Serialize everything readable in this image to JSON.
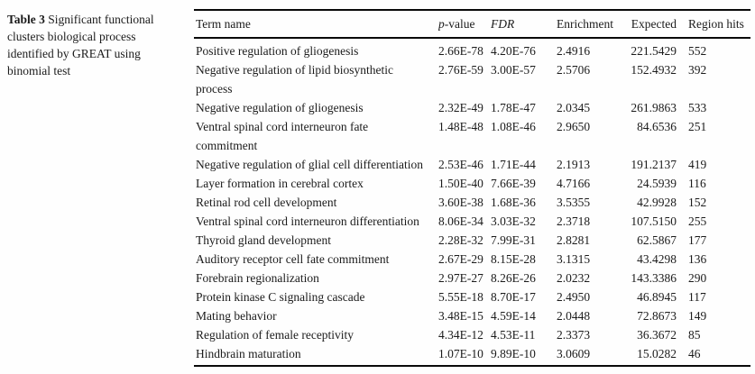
{
  "caption": {
    "label": "Table 3",
    "text": "Significant functional clusters biological process identified by GREAT using binomial test"
  },
  "table": {
    "headers": {
      "term": "Term name",
      "p_italic": "p",
      "p_rest": "-value",
      "fdr": "FDR",
      "enrichment": "Enrichment",
      "expected": "Expected",
      "region_hits": "Region hits"
    },
    "rows": [
      {
        "term": "Positive regulation of gliogenesis",
        "p_value": "2.66E-78",
        "fdr": "4.20E-76",
        "enrichment": "2.4916",
        "expected": "221.5429",
        "region_hits": "552"
      },
      {
        "term": "Negative regulation of lipid biosynthetic process",
        "p_value": "2.76E-59",
        "fdr": "3.00E-57",
        "enrichment": "2.5706",
        "expected": "152.4932",
        "region_hits": "392"
      },
      {
        "term": "Negative regulation of gliogenesis",
        "p_value": "2.32E-49",
        "fdr": "1.78E-47",
        "enrichment": "2.0345",
        "expected": "261.9863",
        "region_hits": "533"
      },
      {
        "term": "Ventral spinal cord interneuron fate commitment",
        "p_value": "1.48E-48",
        "fdr": "1.08E-46",
        "enrichment": "2.9650",
        "expected": "84.6536",
        "region_hits": "251"
      },
      {
        "term": "Negative regulation of glial cell differentiation",
        "p_value": "2.53E-46",
        "fdr": "1.71E-44",
        "enrichment": "2.1913",
        "expected": "191.2137",
        "region_hits": "419"
      },
      {
        "term": "Layer formation in cerebral cortex",
        "p_value": "1.50E-40",
        "fdr": "7.66E-39",
        "enrichment": "4.7166",
        "expected": "24.5939",
        "region_hits": "116"
      },
      {
        "term": "Retinal rod cell development",
        "p_value": "3.60E-38",
        "fdr": "1.68E-36",
        "enrichment": "3.5355",
        "expected": "42.9928",
        "region_hits": "152"
      },
      {
        "term": "Ventral spinal cord interneuron differentiation",
        "p_value": "8.06E-34",
        "fdr": "3.03E-32",
        "enrichment": "2.3718",
        "expected": "107.5150",
        "region_hits": "255"
      },
      {
        "term": "Thyroid gland development",
        "p_value": "2.28E-32",
        "fdr": "7.99E-31",
        "enrichment": "2.8281",
        "expected": "62.5867",
        "region_hits": "177"
      },
      {
        "term": "Auditory receptor cell fate commitment",
        "p_value": "2.67E-29",
        "fdr": "8.15E-28",
        "enrichment": "3.1315",
        "expected": "43.4298",
        "region_hits": "136"
      },
      {
        "term": "Forebrain regionalization",
        "p_value": "2.97E-27",
        "fdr": "8.26E-26",
        "enrichment": "2.0232",
        "expected": "143.3386",
        "region_hits": "290"
      },
      {
        "term": "Protein kinase C signaling cascade",
        "p_value": "5.55E-18",
        "fdr": "8.70E-17",
        "enrichment": "2.4950",
        "expected": "46.8945",
        "region_hits": "117"
      },
      {
        "term": "Mating behavior",
        "p_value": "3.48E-15",
        "fdr": "4.59E-14",
        "enrichment": "2.0448",
        "expected": "72.8673",
        "region_hits": "149"
      },
      {
        "term": "Regulation of female receptivity",
        "p_value": "4.34E-12",
        "fdr": "4.53E-11",
        "enrichment": "2.3373",
        "expected": "36.3672",
        "region_hits": "85"
      },
      {
        "term": "Hindbrain maturation",
        "p_value": "1.07E-10",
        "fdr": "9.89E-10",
        "enrichment": "3.0609",
        "expected": "15.0282",
        "region_hits": "46"
      }
    ]
  }
}
